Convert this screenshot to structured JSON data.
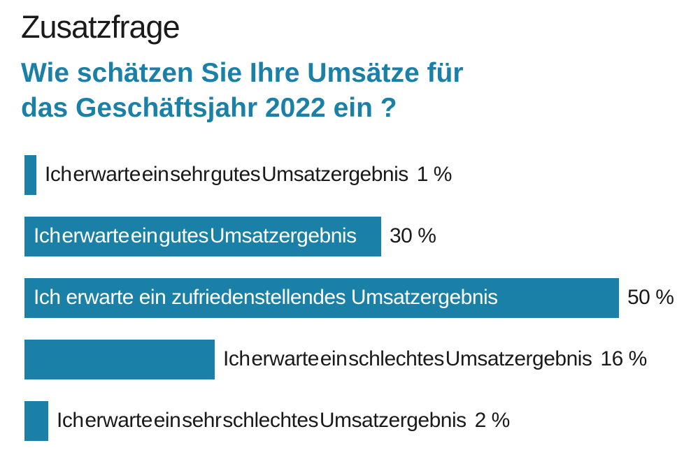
{
  "colors": {
    "accent": "#1b80a8",
    "text": "#1a1a1a",
    "bar_label_inside": "#ffffff",
    "background": "#ffffff"
  },
  "header": {
    "kicker": "Zusatzfrage",
    "question_line1": "Wie schätzen Sie Ihre Umsätze für",
    "question_line2": "das Geschäftsjahr 2022 ein ?"
  },
  "chart_data": {
    "type": "bar",
    "orientation": "horizontal",
    "unit": "%",
    "xlim": [
      0,
      50
    ],
    "grid": false,
    "legend": false,
    "axis_labels": false,
    "categories": [
      "Ich erwarte ein sehr gutes Umsatzergebnis",
      "Ich erwarte ein gutes Umsatzergebnis",
      "Ich erwarte ein zufriedenstellendes Umsatzergebnis",
      "Ich erwarte ein schlechtes Umsatzergebnis",
      "Ich erwarte ein sehr schlechtes Umsatzergebnis"
    ],
    "values": [
      1,
      30,
      50,
      16,
      2
    ],
    "rows": [
      {
        "label": "Ich erwarte ein sehr gutes Umsatzergebnis",
        "value": 1,
        "value_label": "1 %",
        "label_position": "outside"
      },
      {
        "label": "Ich erwarte ein gutes Umsatzergebnis",
        "value": 30,
        "value_label": "30 %",
        "label_position": "inside"
      },
      {
        "label": "Ich erwarte ein zufriedenstellendes Umsatzergebnis",
        "value": 50,
        "value_label": "50 %",
        "label_position": "inside"
      },
      {
        "label": "Ich erwarte ein schlechtes Umsatzergebnis",
        "value": 16,
        "value_label": "16 %",
        "label_position": "outside"
      },
      {
        "label": "Ich erwarte ein sehr schlechtes Umsatzergebnis",
        "value": 2,
        "value_label": "2 %",
        "label_position": "outside"
      }
    ]
  }
}
